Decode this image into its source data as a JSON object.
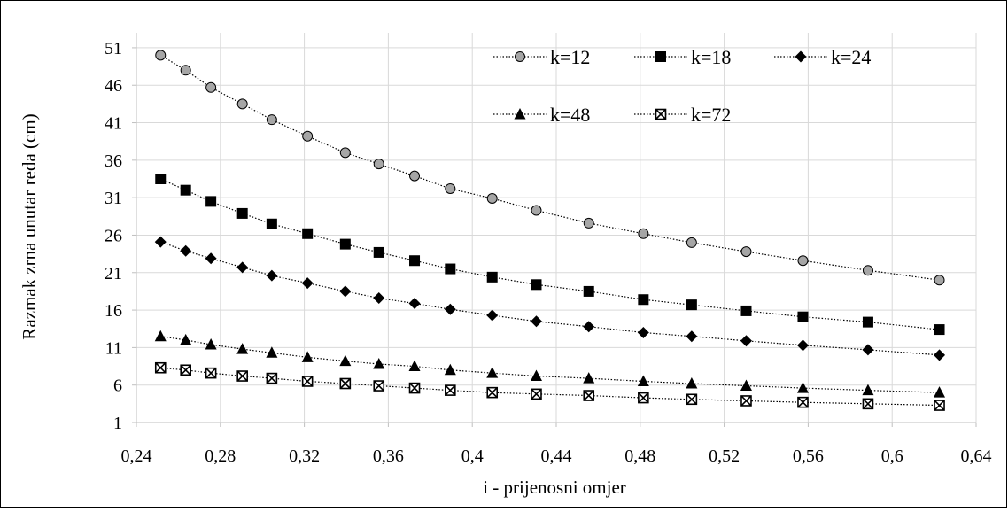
{
  "chart_data": {
    "type": "scatter",
    "title": "",
    "xlabel": "i - prijenosni  omjer",
    "ylabel": "Razmak  zrna  unutar  reda (cm)",
    "xlim": [
      0.24,
      0.64
    ],
    "ylim": [
      1,
      53
    ],
    "x_ticks": [
      0.24,
      0.28,
      0.32,
      0.36,
      0.4,
      0.44,
      0.48,
      0.52,
      0.56,
      0.6,
      0.64
    ],
    "x_tick_labels": [
      "0,24",
      "0,28",
      "0,32",
      "0,36",
      "0,4",
      "0,44",
      "0,48",
      "0,52",
      "0,56",
      "0,6",
      "0,64"
    ],
    "y_ticks": [
      1,
      6,
      11,
      16,
      21,
      26,
      31,
      36,
      41,
      46,
      51
    ],
    "y_tick_labels": [
      "1",
      "6",
      "11",
      "16",
      "21",
      "26",
      "31",
      "36",
      "41",
      "46",
      "51"
    ],
    "grid": true,
    "legend_position": "top-right",
    "x": [
      0.2515,
      0.2635,
      0.2755,
      0.2905,
      0.3045,
      0.3215,
      0.3395,
      0.3555,
      0.3725,
      0.3895,
      0.4095,
      0.4305,
      0.4555,
      0.4815,
      0.5045,
      0.5305,
      0.5575,
      0.5885,
      0.6225
    ],
    "series": [
      {
        "name": "k=12",
        "marker": "circle",
        "color": "#a6a6a6",
        "values": [
          50.0,
          48.0,
          45.7,
          43.5,
          41.4,
          39.2,
          37.0,
          35.5,
          33.9,
          32.2,
          30.9,
          29.3,
          27.6,
          26.2,
          25.0,
          23.8,
          22.6,
          21.3,
          20.0
        ]
      },
      {
        "name": "k=18",
        "marker": "square",
        "color": "#000000",
        "values": [
          33.5,
          32.0,
          30.5,
          28.9,
          27.5,
          26.2,
          24.8,
          23.7,
          22.6,
          21.5,
          20.4,
          19.4,
          18.5,
          17.4,
          16.7,
          15.9,
          15.1,
          14.4,
          13.4
        ]
      },
      {
        "name": "k=24",
        "marker": "diamond",
        "color": "#000000",
        "values": [
          25.1,
          23.9,
          22.9,
          21.7,
          20.6,
          19.6,
          18.5,
          17.6,
          16.9,
          16.1,
          15.3,
          14.5,
          13.8,
          13.0,
          12.5,
          11.9,
          11.3,
          10.7,
          10.0
        ]
      },
      {
        "name": "k=48",
        "marker": "triangle",
        "color": "#000000",
        "values": [
          12.5,
          12.0,
          11.4,
          10.8,
          10.3,
          9.7,
          9.2,
          8.8,
          8.5,
          8.0,
          7.6,
          7.2,
          6.9,
          6.5,
          6.2,
          5.9,
          5.6,
          5.3,
          5.0
        ]
      },
      {
        "name": "k=72",
        "marker": "boxx",
        "color": "#000000",
        "values": [
          8.3,
          8.0,
          7.6,
          7.2,
          6.9,
          6.5,
          6.2,
          5.9,
          5.6,
          5.3,
          5.0,
          4.8,
          4.6,
          4.3,
          4.1,
          3.9,
          3.7,
          3.5,
          3.3
        ]
      }
    ]
  }
}
